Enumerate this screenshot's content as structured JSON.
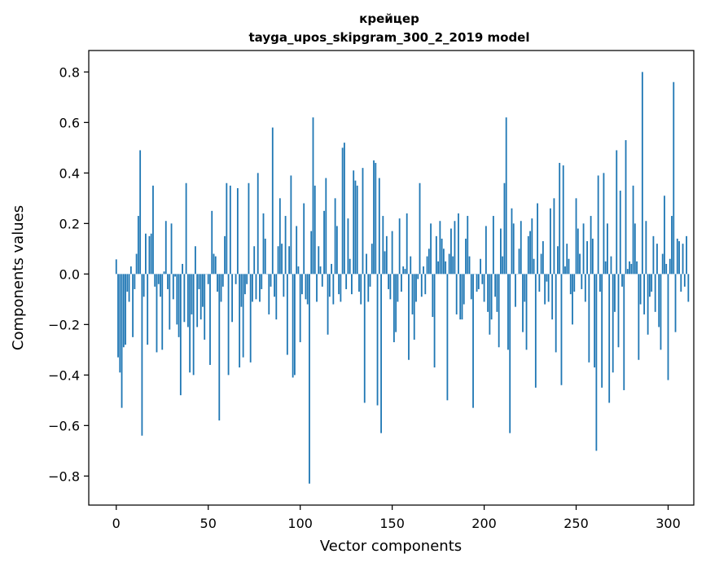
{
  "chart_data": {
    "type": "bar",
    "title": "крейцер",
    "subtitle": "tayga_upos_skipgram_300_2_2019 model",
    "xlabel": "Vector components",
    "ylabel": "Components values",
    "xlim": [
      -14.95,
      313.95
    ],
    "ylim": [
      -0.915,
      0.885
    ],
    "xticks": [
      0,
      50,
      100,
      150,
      200,
      250,
      300
    ],
    "yticks": [
      -0.8,
      -0.6,
      -0.4,
      -0.2,
      0.0,
      0.2,
      0.4,
      0.6,
      0.8
    ],
    "ytick_labels": [
      "−0.8",
      "−0.6",
      "−0.4",
      "−0.2",
      "0.0",
      "0.2",
      "0.4",
      "0.6",
      "0.8"
    ],
    "grid": false,
    "color": "#1f77b4",
    "values": [
      0.058,
      -0.33,
      -0.39,
      -0.53,
      -0.29,
      -0.28,
      -0.07,
      -0.11,
      0.03,
      -0.25,
      -0.06,
      0.08,
      0.23,
      0.49,
      -0.64,
      -0.09,
      0.16,
      -0.28,
      0.15,
      0.16,
      0.35,
      -0.05,
      -0.31,
      -0.04,
      -0.09,
      -0.3,
      0.01,
      0.21,
      -0.06,
      -0.22,
      0.2,
      -0.1,
      -0.01,
      -0.2,
      -0.25,
      -0.48,
      0.04,
      -0.19,
      0.36,
      -0.21,
      -0.39,
      -0.16,
      -0.4,
      0.11,
      -0.21,
      -0.06,
      -0.18,
      -0.13,
      -0.26,
      0.0,
      -0.04,
      -0.36,
      0.25,
      0.08,
      0.07,
      -0.07,
      -0.58,
      -0.11,
      -0.05,
      0.15,
      0.36,
      -0.4,
      0.35,
      -0.19,
      0.0,
      -0.04,
      0.34,
      -0.37,
      -0.13,
      -0.33,
      -0.08,
      -0.04,
      0.36,
      -0.35,
      -0.11,
      0.11,
      -0.1,
      0.4,
      -0.11,
      -0.06,
      0.24,
      0.14,
      0.0,
      -0.16,
      -0.05,
      0.58,
      -0.09,
      -0.18,
      0.11,
      0.3,
      0.12,
      -0.09,
      0.23,
      -0.32,
      0.11,
      0.39,
      -0.41,
      -0.4,
      0.19,
      0.03,
      -0.27,
      -0.08,
      0.28,
      -0.1,
      -0.12,
      -0.83,
      0.17,
      0.62,
      0.35,
      -0.11,
      0.11,
      0.03,
      -0.05,
      0.25,
      0.38,
      -0.24,
      -0.09,
      0.04,
      -0.12,
      0.3,
      0.19,
      -0.08,
      -0.11,
      0.5,
      0.52,
      -0.06,
      0.22,
      0.06,
      -0.08,
      0.41,
      0.37,
      0.35,
      -0.07,
      -0.12,
      0.42,
      -0.51,
      0.08,
      -0.11,
      -0.05,
      0.12,
      0.45,
      0.44,
      -0.52,
      0.38,
      -0.63,
      0.23,
      0.09,
      0.15,
      -0.06,
      -0.1,
      0.17,
      -0.27,
      -0.23,
      -0.11,
      0.22,
      -0.07,
      0.03,
      0.02,
      0.24,
      -0.34,
      0.07,
      -0.16,
      -0.26,
      -0.11,
      -0.02,
      0.36,
      -0.09,
      0.03,
      -0.08,
      0.07,
      0.1,
      0.2,
      -0.17,
      -0.37,
      0.15,
      0.05,
      0.21,
      0.14,
      0.1,
      0.05,
      -0.5,
      0.08,
      0.18,
      0.07,
      0.21,
      -0.16,
      0.24,
      -0.18,
      -0.18,
      -0.12,
      0.14,
      0.23,
      0.07,
      -0.1,
      -0.53,
      0.0,
      -0.07,
      -0.06,
      0.06,
      -0.04,
      -0.11,
      0.19,
      -0.15,
      -0.24,
      -0.18,
      0.23,
      -0.09,
      -0.15,
      -0.29,
      0.18,
      0.07,
      0.36,
      0.62,
      -0.3,
      -0.63,
      0.26,
      0.2,
      -0.13,
      0.0,
      0.1,
      0.21,
      -0.23,
      -0.11,
      -0.3,
      0.15,
      0.17,
      0.22,
      0.06,
      -0.45,
      0.28,
      -0.07,
      0.08,
      0.13,
      -0.12,
      -0.03,
      -0.11,
      0.26,
      -0.18,
      0.3,
      -0.31,
      0.11,
      0.44,
      -0.44,
      0.43,
      0.03,
      0.12,
      0.06,
      -0.08,
      -0.2,
      -0.07,
      0.3,
      0.18,
      0.08,
      -0.06,
      0.2,
      -0.11,
      0.13,
      -0.35,
      0.23,
      0.14,
      -0.37,
      -0.7,
      0.39,
      -0.07,
      -0.45,
      0.4,
      0.05,
      0.2,
      -0.51,
      0.07,
      -0.39,
      -0.15,
      0.49,
      -0.29,
      0.33,
      -0.05,
      -0.46,
      0.53,
      0.02,
      0.05,
      0.04,
      0.35,
      0.2,
      0.05,
      -0.34,
      -0.12,
      0.8,
      -0.16,
      0.21,
      -0.24,
      -0.09,
      -0.07,
      0.15,
      -0.15,
      0.12,
      -0.21,
      -0.3,
      0.08,
      0.31,
      0.04,
      -0.42,
      0.06,
      0.23,
      0.76,
      -0.23,
      0.14,
      0.13,
      -0.07,
      0.12,
      -0.05,
      0.15,
      -0.11
    ]
  }
}
